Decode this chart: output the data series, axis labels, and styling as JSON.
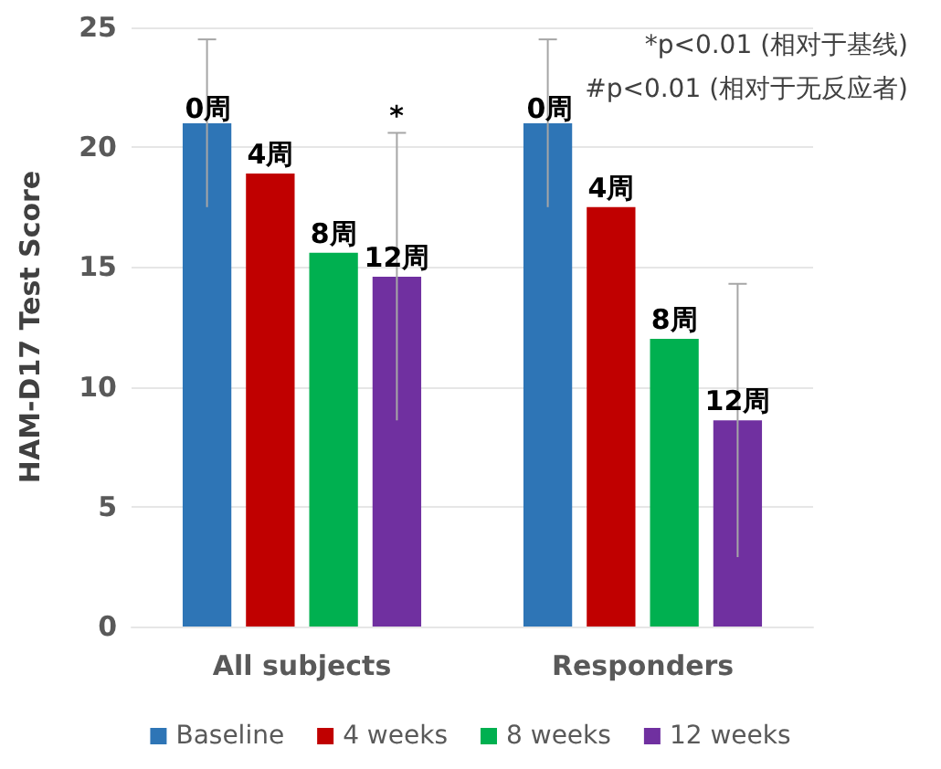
{
  "chart_data": {
    "type": "bar",
    "ylabel": "HAM-D17 Test Score",
    "categories": [
      "All subjects",
      "Responders"
    ],
    "series": [
      {
        "name": "Baseline",
        "color": "#2e75b6",
        "values": [
          21.0,
          21.0
        ],
        "errors": [
          3.5,
          3.5
        ]
      },
      {
        "name": "4 weeks",
        "color": "#c00000",
        "values": [
          18.9,
          17.5
        ]
      },
      {
        "name": "8 weeks",
        "color": "#00b050",
        "values": [
          15.6,
          12.0
        ]
      },
      {
        "name": "12 weeks",
        "color": "#7030a0",
        "values": [
          14.6,
          8.6
        ],
        "errors": [
          6.0,
          5.7
        ]
      }
    ],
    "ylim": [
      0,
      25
    ],
    "yticks": [
      0,
      5,
      10,
      15,
      20,
      25
    ],
    "grid": "y",
    "legend": "bottom",
    "annotations": [
      "0周",
      {
        "text": "4周",
        "x": "All subjects",
        "y": 18.9
      },
      {
        "text": "8周",
        "x": "All subjects",
        "y": 15.6
      },
      {
        "text": "12周",
        "x": "All subjects",
        "y": 14.6
      },
      "0周",
      {
        "text": "4周",
        "x": "Responders",
        "y": 17.5
      },
      {
        "text": "8周",
        "x": "Responders",
        "y": 12.0
      },
      {
        "text": "12周",
        "x": "Responders",
        "y": 8.6
      },
      "*",
      "*p<0.01 (相对于基线)",
      "#p<0.01 (相对于无反应者)"
    ]
  }
}
